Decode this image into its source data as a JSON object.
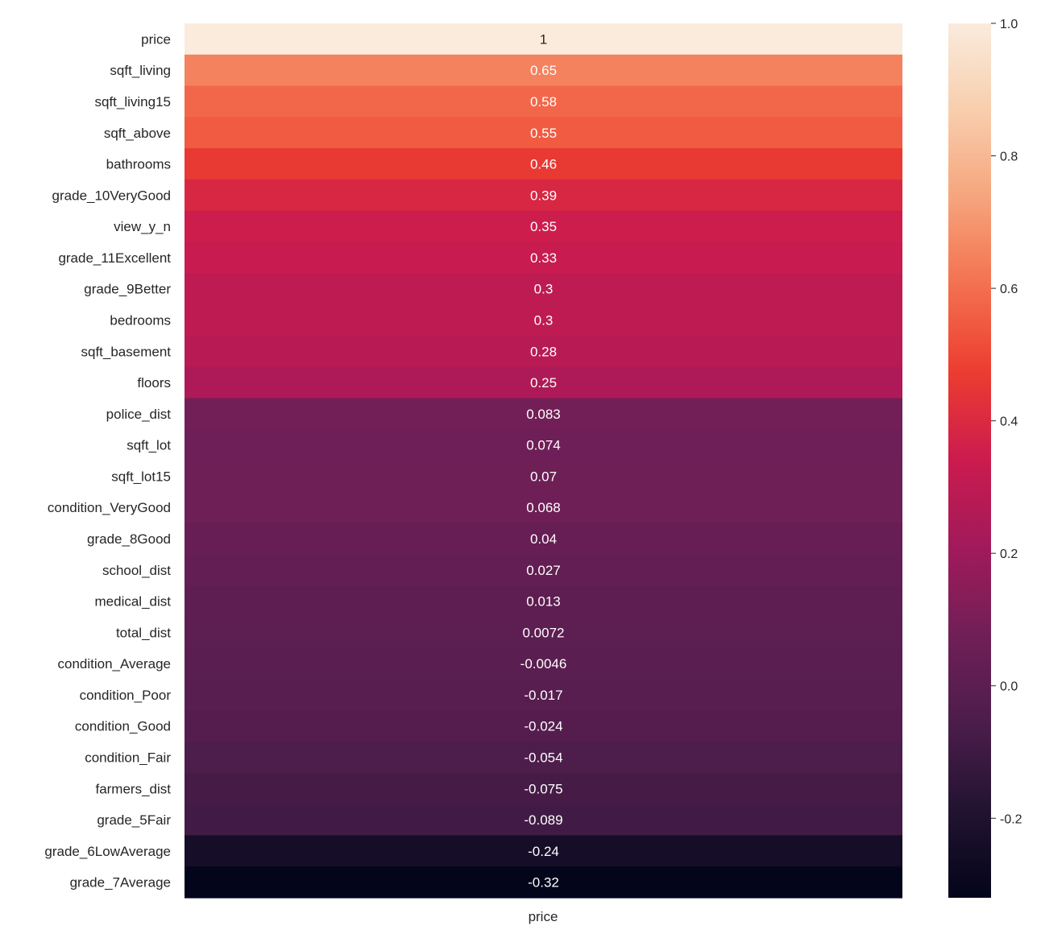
{
  "chart_data": {
    "type": "heatmap",
    "title": "",
    "column_labels": [
      "price"
    ],
    "row_labels": [
      "price",
      "sqft_living",
      "sqft_living15",
      "sqft_above",
      "bathrooms",
      "grade_10VeryGood",
      "view_y_n",
      "grade_11Excellent",
      "grade_9Better",
      "bedrooms",
      "sqft_basement",
      "floors",
      "police_dist",
      "sqft_lot",
      "sqft_lot15",
      "condition_VeryGood",
      "grade_8Good",
      "school_dist",
      "medical_dist",
      "total_dist",
      "condition_Average",
      "condition_Poor",
      "condition_Good",
      "condition_Fair",
      "farmers_dist",
      "grade_5Fair",
      "grade_6LowAverage",
      "grade_7Average"
    ],
    "values": [
      1,
      0.65,
      0.58,
      0.55,
      0.46,
      0.39,
      0.35,
      0.33,
      0.3,
      0.3,
      0.28,
      0.25,
      0.083,
      0.074,
      0.07,
      0.068,
      0.04,
      0.027,
      0.013,
      0.0072,
      -0.0046,
      -0.017,
      -0.024,
      -0.054,
      -0.075,
      -0.089,
      -0.24,
      -0.32
    ],
    "annotations": [
      "1",
      "0.65",
      "0.58",
      "0.55",
      "0.46",
      "0.39",
      "0.35",
      "0.33",
      "0.3",
      "0.3",
      "0.28",
      "0.25",
      "0.083",
      "0.074",
      "0.07",
      "0.068",
      "0.04",
      "0.027",
      "0.013",
      "0.0072",
      "-0.0046",
      "-0.017",
      "-0.024",
      "-0.054",
      "-0.075",
      "-0.089",
      "-0.24",
      "-0.32"
    ],
    "colormap": "rocket",
    "colorbar": {
      "vmin": -0.32,
      "vmax": 1.0,
      "ticks": [
        -0.2,
        0.0,
        0.2,
        0.4,
        0.6,
        0.8,
        1.0
      ],
      "tick_labels": [
        "-0.2",
        "0.0",
        "0.2",
        "0.4",
        "0.6",
        "0.8",
        "1.0"
      ]
    },
    "grid": false,
    "legend": "colorbar-right"
  }
}
